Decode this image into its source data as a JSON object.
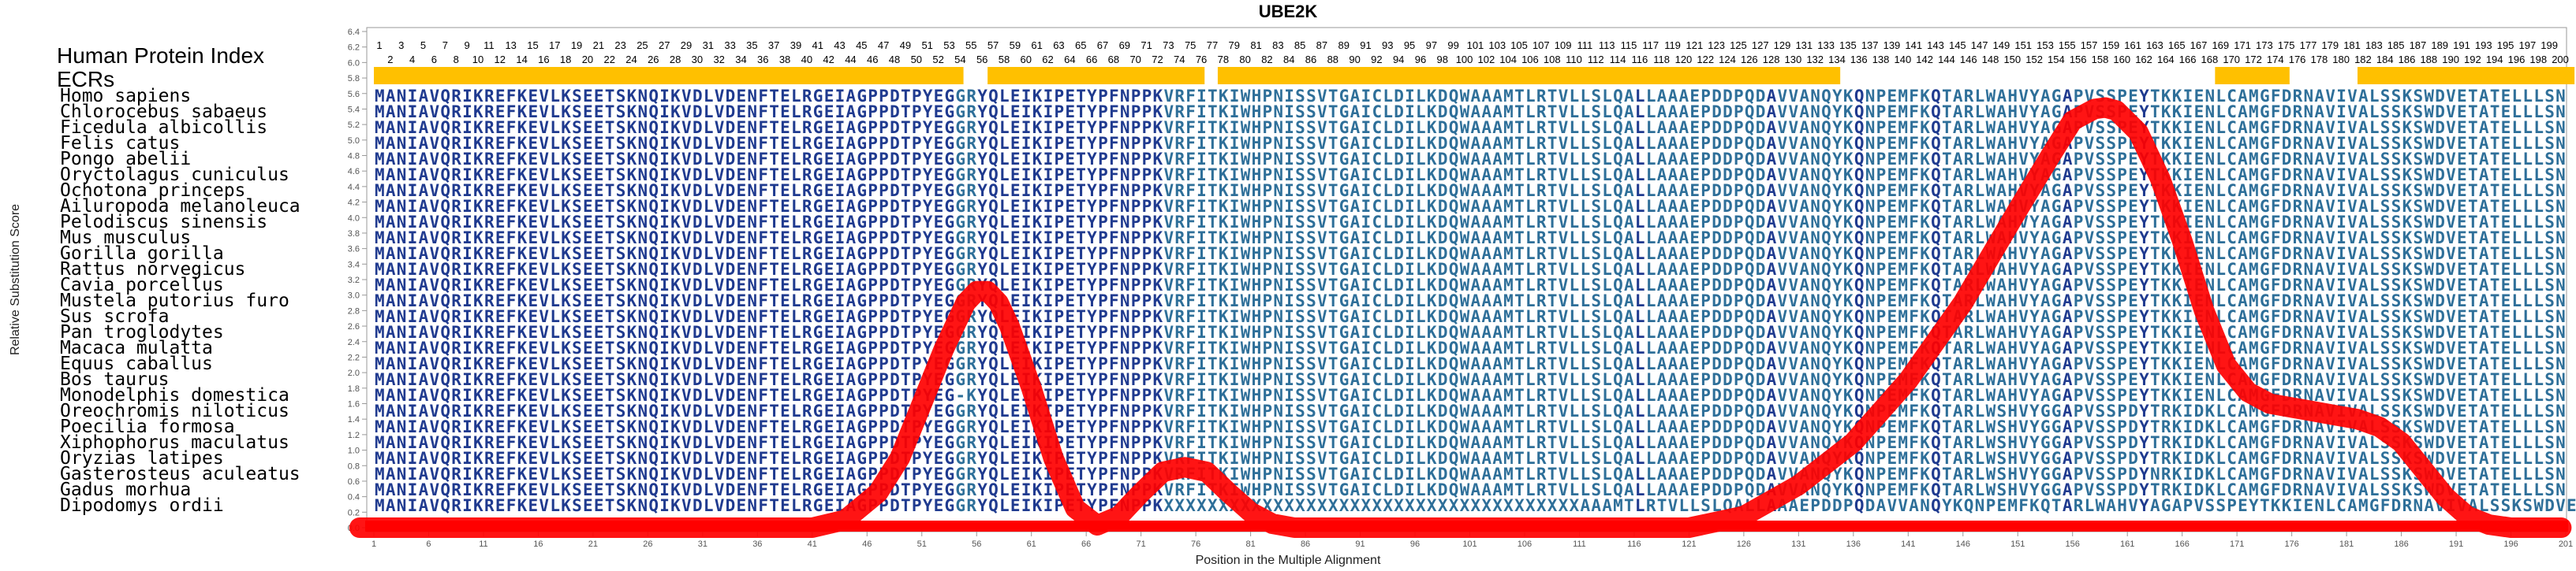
{
  "chart_data": {
    "type": "line",
    "title": "UBE2K",
    "xlabel": "Position in the Multiple Alignment",
    "ylabel": "Relative Substitution Score",
    "xlim": [
      1,
      201
    ],
    "ylim": [
      0.0,
      6.4
    ],
    "y_ticks": [
      "0.0",
      "0.2",
      "0.4",
      "0.6",
      "0.8",
      "1.0",
      "1.2",
      "1.4",
      "1.6",
      "1.8",
      "2.0",
      "2.2",
      "2.4",
      "2.6",
      "2.8",
      "3.0",
      "3.2",
      "3.4",
      "3.6",
      "3.8",
      "4.0",
      "4.2",
      "4.4",
      "4.6",
      "4.8",
      "5.0",
      "5.2",
      "5.4",
      "5.6",
      "5.8",
      "6.0",
      "6.2",
      "6.4"
    ],
    "x_ticks": [
      "1",
      "6",
      "11",
      "16",
      "21",
      "26",
      "31",
      "36",
      "41",
      "46",
      "51",
      "56",
      "61",
      "66",
      "71",
      "76",
      "81",
      "86",
      "91",
      "96",
      "101",
      "106",
      "111",
      "116",
      "121",
      "126",
      "131",
      "136",
      "141",
      "146",
      "151",
      "156",
      "161",
      "166",
      "171",
      "176",
      "181",
      "186",
      "191",
      "196",
      "201"
    ],
    "human_index_label": "Human Protein Index",
    "ecr_label": "ECRs",
    "ecr_color": "#ffc000",
    "ecr_regions": [
      [
        1,
        54
      ],
      [
        57,
        76
      ],
      [
        78,
        134
      ],
      [
        169,
        175
      ],
      [
        182,
        201
      ]
    ],
    "line_color": "#ff0000",
    "series": [
      {
        "x": [
          -0.3,
          41,
          44,
          47,
          49,
          51,
          53,
          55,
          56,
          57,
          58,
          59,
          61,
          63,
          65,
          67,
          69,
          71,
          73,
          75,
          77,
          79,
          81,
          83,
          85,
          87,
          91,
          95,
          101,
          111,
          121,
          126,
          131,
          136,
          141,
          146,
          151,
          154,
          156,
          158,
          159,
          160,
          162,
          164,
          166,
          168,
          170,
          172,
          174,
          176,
          178,
          180,
          182,
          184,
          186,
          188,
          190,
          192,
          194,
          196,
          198,
          200.6
        ],
        "y": [
          0.0,
          0.0,
          0.1,
          0.45,
          0.9,
          1.6,
          2.3,
          2.9,
          3.05,
          3.05,
          2.9,
          2.6,
          1.8,
          0.9,
          0.25,
          0.03,
          0.15,
          0.45,
          0.72,
          0.78,
          0.72,
          0.45,
          0.2,
          0.05,
          0.0,
          0.0,
          0.0,
          0.0,
          0.0,
          0.0,
          0.0,
          0.15,
          0.55,
          1.1,
          1.9,
          2.9,
          4.1,
          4.8,
          5.25,
          5.4,
          5.42,
          5.38,
          5.1,
          4.5,
          3.7,
          2.8,
          2.1,
          1.75,
          1.6,
          1.55,
          1.5,
          1.45,
          1.4,
          1.3,
          1.1,
          0.75,
          0.4,
          0.15,
          0.04,
          0.0,
          0.0,
          0.0
        ]
      }
    ]
  },
  "alignment": {
    "species": [
      "Homo sapiens",
      "Chlorocebus sabaeus",
      "Ficedula albicollis",
      "Felis catus",
      "Pongo abelii",
      "Oryctolagus cuniculus",
      "Ochotona princeps",
      "Ailuropoda melanoleuca",
      "Pelodiscus sinensis",
      "Mus musculus",
      "Gorilla gorilla",
      "Rattus norvegicus",
      "Cavia porcellus",
      "Mustela putorius furo",
      "Sus scrofa",
      "Pan troglodytes",
      "Macaca mulatta",
      "Equus caballus",
      "Bos taurus",
      "Monodelphis domestica",
      "Oreochromis niloticus",
      "Poecilia formosa",
      "Xiphophorus maculatus",
      "Oryzias latipes",
      "Gasterosteus aculeatus",
      "Gadus morhua",
      "Dipodomys ordii"
    ],
    "sequences": [
      "MANIAVQRIKREFKEVLKSEETSKNQIKVDLVDENFTELRGEIAGPPDTPYEGGRYQLEIKIPETYPFNPPKVRFITKIWHPNISSVTGAICLDILKDQWAAAMTLRTVLLSLQALLAAAEPDDPQDAVVANQYKQNPEMFKQTARLWAHVYAGAPVSSPEYTKKIENLCAMGFDRNAVIVALSSKSWDVETATELLLSN",
      "MANIAVQRIKREFKEVLKSEETSKNQIKVDLVDENFTELRGEIAGPPDTPYEGGRYQLEIKIPETYPFNPPKVRFITKIWHPNISSVTGAICLDILKDQWAAAMTLRTVLLSLQALLAAAEPDDPQDAVVANQYKQNPEMFKQTARLWAHVYAGAPVSSPEYTKKIENLCAMGFDRNAVIVALSSKSWDVETATELLLSN",
      "MANIAVQRIKREFKEVLKSEETSKNQIKVDLVDENFTELRGEIAGPPDTPYEGGRYQLEIKIPETYPFNPPKVRFITKIWHPNISSVTGAICLDILKDQWAAAMTLRTVLLSLQALLAAAEPDDPQDAVVANQYKQNPEMFKQTARLWAHVYAGAPVSSPEYTKKIENLCAMGFDRNAVIVALSSKSWDVETATELLLSN",
      "MANIAVQRIKREFKEVLKSEETSKNQIKVDLVDENFTELRGEIAGPPDTPYEGGRYQLEIKIPETYPFNPPKVRFITKIWHPNISSVTGAICLDILKDQWAAAMTLRTVLLSLQALLAAAEPDDPQDAVVANQYKQNPEMFKQTARLWAHVYAGAPVSSPEYTKKIENLCAMGFDRNAVIVALSSKSWDVETATELLLSN",
      "MANIAVQRIKREFKEVLKSEETSKNQIKVDLVDENFTELRGEIAGPPDTPYEGGRYQLEIKIPETYPFNPPKVRFITKIWHPNISSVTGAICLDILKDQWAAAMTLRTVLLSLQALLAAAEPDDPQDAVVANQYKQNPEMFKQTARLWAHVYAGAPVSSPEYTKKIENLCAMGFDRNAVIVALSSKSWDVETATELLLSN",
      "MANIAVQRIKREFKEVLKSEETSKNQIKVDLVDENFTELRGEIAGPPDTPYEGGRYQLEIKIPETYPFNPPKVRFITKIWHPNISSVTGAICLDILKDQWAAAMTLRTVLLSLQALLAAAEPDDPQDAVVANQYKQNPEMFKQTARLWAHVYAGAPVSSPEYTKKIENLCAMGFDRNAVIVALSSKSWDVETATELLLSN",
      "MANIAVQRIKREFKEVLKSEETSKNQIKVDLVDENFTELRGEIAGPPDTPYEGGRYQLEIKIPETYPFNPPKVRFITKIWHPNISSVTGAICLDILKDQWAAAMTLRTVLLSLQALLAAAEPDDPQDAVVANQYKQNPEMFKQTARLWAHVYAGAPVSSPEYTKKIENLCAMGFDRNAVIVALSSKSWDVETATELLLSN",
      "MANIAVQRIKREFKEVLKSEETSKNQIKVDLVDENFTELRGEIAGPPDTPYEGGRYQLEIKIPETYPFNPPKVRFITKIWHPNISSVTGAICLDILKDQWAAAMTLRTVLLSLQALLAAAEPDDPQDAVVANQYKQNPEMFKQTARLWAHVYAGAPVSSPEYTKKIENLCAMGFDRNAVIVALSSKSWDVETATELLLSN",
      "MANIAVQRIKREFKEVLKSEETSKNQIKVDLVDENFTELRGEIAGPPDTPYEGGRYQLEIKIPETYPFNPPKVRFITKIWHPNISSVTGAICLDILKDQWAAAMTLRTVLLSLQALLAAAEPDDPQDAVVANQYKQNPEMFKQTARLWAHVYAGAPVSSPEYTKKIENLCAMGFDRNAVIVALSSKSWDVETATELLLSN",
      "MANIAVQRIKREFKEVLKSEETSKNQIKVDLVDENFTELRGEIAGPPDTPYEGGRYQLEIKIPETYPFNPPKVRFITKIWHPNISSVTGAICLDILKDQWAAAMTLRTVLLSLQALLAAAEPDDPQDAVVANQYKQNPEMFKQTARLWAHVYAGAPVSSPEYTKKIENLCAMGFDRNAVIVALSSKSWDVETATELLLSN",
      "MANIAVQRIKREFKEVLKSEETSKNQIKVDLVDENFTELRGEIAGPPDTPYEGGRYQLEIKIPETYPFNPPKVRFITKIWHPNISSVTGAICLDILKDQWAAAMTLRTVLLSLQALLAAAEPDDPQDAVVANQYKQNPEMFKQTARLWAHVYAGAPVSSPEYTKKIENLCAMGFDRNAVIVALSSKSWDVETATELLLSN",
      "MANIAVQRIKREFKEVLKSEETSKNQIKVDLVDENFTELRGEIAGPPDTPYEGGRYQLEIKIPETYPFNPPKVRFITKIWHPNISSVTGAICLDILKDQWAAAMTLRTVLLSLQALLAAAEPDDPQDAVVANQYKQNPEMFKQTARLWAHVYAGAPVSSPEYTKKIENLCAMGFDRNAVIVALSSKSWDVETATELLLSN",
      "MANIAVQRIKREFKEVLKSEETSKNQIKVDLVDENFTELRGEIAGPPDTPYEGGRYQLEIKIPETYPFNPPKVRFITKIWHPNISSVTGAICLDILKDQWAAAMTLRTVLLSLQALLAAAEPDDPQDAVVANQYKQNPEMFKQTARLWAHVYAGAPVSSPEYTKKIENLCAMGFDRNAVIVALSSKSWDVETATELLLSN",
      "MANIAVQRIKREFKEVLKSEETSKNQIKVDLVDENFTELRGEIAGPPDTPYEGGRYQLEIKIPETYPFNPPKVRFITKIWHPNISSVTGAICLDILKDQWAAAMTLRTVLLSLQALLAAAEPDDPQDAVVANQYKQNPEMFKQTARLWAHVYAGAPVSSPEYTKKIENLCAMGFDRNAVIVALSSKSWDVETATELLLSN",
      "MANIAVQRIKREFKEVLKSEETSKNQIKVDLVDENFTELRGEIAGPPDTPYEGGRYQLEIKIPETYPFNPPKVRFITKIWHPNISSVTGAICLDILKDQWAAAMTLRTVLLSLQALLAAAEPDDPQDAVVANQYKQNPEMFKQTARLWAHVYAGAPVSSPEYTKKIENLCAMGFDRNAVIVALSSKSWDVETATELLLSN",
      "MANIAVQRIKREFKEVLKSEETSKNQIKVDLVDENFTELRGEIAGPPDTPYEGGRYQLEIKIPETYPFNPPKVRFITKIWHPNISSVTGAICLDILKDQWAAAMTLRTVLLSLQALLAAAEPDDPQDAVVANQYKQNPEMFKQTARLWAHVYAGAPVSSPEYTKKIENLCAMGFDRNAVIVALSSKSWDVETATELLLSN",
      "MANIAVQRIKREFKEVLKSEETSKNQIKVDLVDENFTELRGEIAGPPDTPYEGGRYQLEIKIPETYPFNPPKVRFITKIWHPNISSVTGAICLDILKDQWAAAMTLRTVLLSLQALLAAAEPDDPQDAVVANQYKQNPEMFKQTARLWAHVYAGAPVSSPEYTKKIENLCAMGFDRNAVIVALSSKSWDVETATELLLSN",
      "MANIAVQRIKREFKEVLKSEETSKNQIKVDLVDENFTELRGEIAGPPDTPYEGGRYQLEIKIPETYPFNPPKVRFITKIWHPNISSVTGAICLDILKDQWAAAMTLRTVLLSLQALLAAAEPDDPQDAVVANQYKQNPEMFKQTARLWAHVYAGAPVSSPEYTKKIENLCAMGFDRNAVIVALSSKSWDVETATELLLSN",
      "MANIAVQRIKREFKEVLKSEETSKNQIKVDLVDENFTELRGEIAGPPDTPYEGGRYQLEIKIPETYPFNPPKVRFITKIWHPNISSVTGAICLDILKDQWAAAMTLRTVLLSLQALLAAAEPDDPQDAVVANQYKQNPEMFKQTARLWAHVYAGAPVSSPEYTKKIENLCAMGFDRNAVIVALSSKSWDVETATELLLSN",
      "MANIAVQRIKREFKEVLKSEETSKNQIKVDLVDENFTELRGEIAGPPDTPYEG-KYQLEIKIPETYPFNPPKVRFITKIWHPNISSVTGAICLDILKDQWAAAMTLRTVLLSLQALLAAAEPDDPQDAVVANQYKQNPEMFKQTARLWAHVYAGAPVSSPEYTKKIENLCAMGFDRNAVIVALSSKSWDVETATELLLSN",
      "MANIAVQRIKREFKEVLKSEETSKNQIKVDLVDENFTELRGEIAGPPDTPYEGGRYQLEIKIPETYPFNPPKVRFITKIWHPNISSVTGAICLDILKDQWAAAMTLRTVLLSLQALLAAAEPDDPQDAVVANQYKQNPEMFKQTARLWSHVYGGAPVSSPDYTRKIDKLCAMGFDRNAVIVALSSKSWDVETATELLLSN",
      "MANIAVQRIKREFKEVLKSEETSKNQIKVDLVDENFTELRGEIAGPPDTPYEGGRYQLEIKIPETYPFNPPKVRFITKIWHPNISSVTGAICLDILKDQWAAAMTLRTVLLSLQALLAAAEPDDPQDAVVANQYKQNPEMFKQTARLWSHVYGGAPVSSPDYTRKIDKLCAMGFDRNAVIVALSSKSWDVETATELLLSN",
      "MANIAVQRIKREFKEVLKSEETSKNQIKVDLVDENFTELRGEIAGPPDTPYEGGRYQLEIKIPETYPFNPPKVRFITKIWHPNISSVTGAICLDILKDQWAAAMTLRTVLLSLQALLAAAEPDDPQDAVVANQYKQNPEMFKQTARLWSHVYGGAPVSSPDYTRKIDKLCAMGFDRNAVIVALSSKSWDVETATELLLSN",
      "MANIAVQRIKREFKEVLKSEETSKNQIKVDLVDENFTELRGEIAGPPDTPYEGGRYQLEIKIPETYPFNPPKVRFITKIWHPNISSVTGAICLDILKDQWAAAMTLRTVLLSLQALLAAAEPDDPQDAVVANQYKQNPEMFKQTARLWSHVYGGAPVSSPDYTRKIDKLCAMGFDRNAVIVALSSKSWDVETATELLLSN",
      "MANIAVQRIKREFKEVLKSEETSKNQIKVDLVDENFTELRGEIAGPPDTPYEGGRYQLEIKIPETYPFNPPKVRFITKIWHPNISSVTGAICLDILKDQWAAAMTLRTVLLSLQALLAAAEPDDPQDAVVANQYKQNPEMFKQTARLWSHVYGGAPVSSPDYNRKIDKLCAMGFDRNAVIVALSSKSWDVETATELLLSN",
      "MANIAVQRIKREFKEVLKSEETSKNQIKVDLVDENFTELRGEIAGPPDTPYEGGRYQLEIKIPETYPFNPPKVRFITKIWHPNISSVTGAICLDILKDQWAAAMTLRTVLLSLQALLAAAEPDDPQDAVVANQYKQNPEMFKQTARLWSHVYGGAPVSSPDYTRKIDKLCAMGFDRNAVIVALSSKSWDVETATELLLSN",
      "MANIAVQRIKREFKEVLKSEETSKNQIKVDLVDENFTELRGEIAGPPDTPYEGGRYQLEIKIPETYPFNPPKXXXXXXXXXXXXXXXXXXXXXXXXXXXXXXXXXXXXXXAAAMTLRTVLLSLQALLAAAEPDDPQDAVVANQYKQNPEMFKQTARLWAHVYAGAPVSSPEYTKKIENLCAMGFDRNAVIVALSSKSWDVETATELLLSN"
    ]
  }
}
